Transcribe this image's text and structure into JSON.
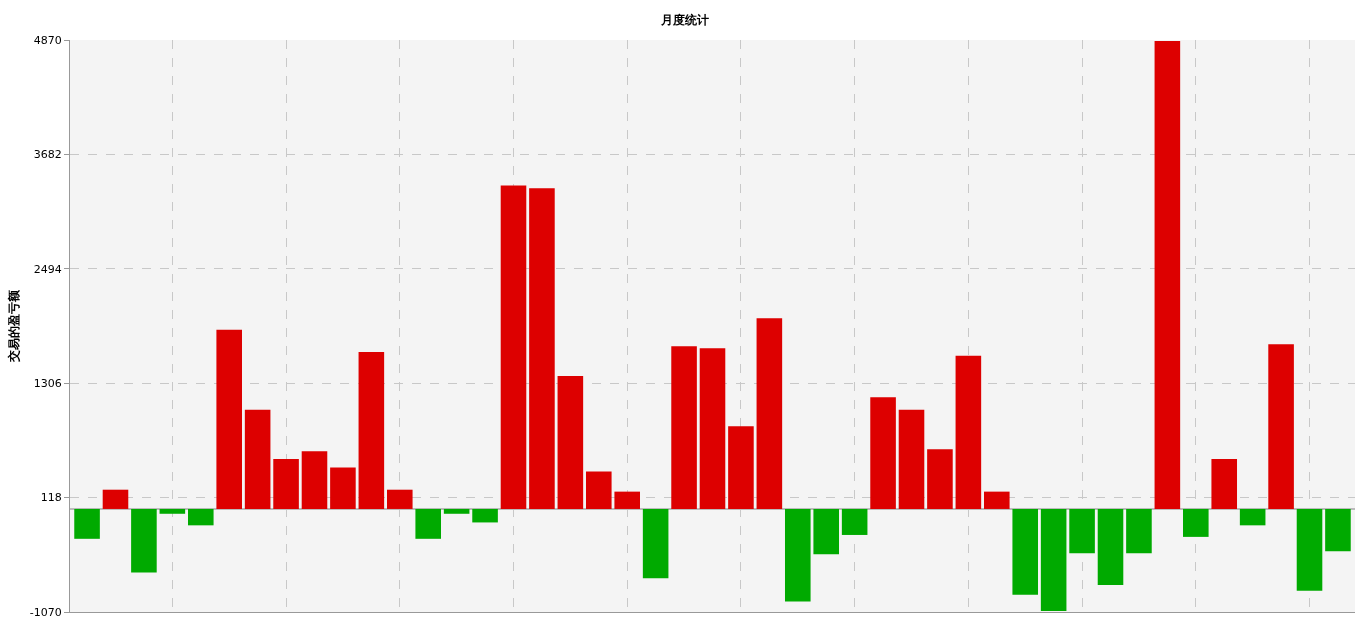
{
  "chart_data": {
    "type": "bar",
    "title": "月度统计",
    "ylabel": "交易的盈亏额",
    "categories": [
      null,
      null,
      null,
      null,
      null,
      null,
      null,
      null,
      null,
      null,
      null,
      null,
      null,
      null,
      null,
      null,
      null,
      null,
      null,
      null,
      null,
      null,
      null,
      null,
      null,
      null,
      null,
      null,
      null,
      null,
      null,
      null,
      null,
      null,
      null,
      null,
      null,
      null,
      null,
      null,
      null,
      null,
      null,
      null,
      null
    ],
    "values": [
      -310,
      200,
      -660,
      -50,
      -170,
      1860,
      1030,
      520,
      600,
      430,
      1630,
      200,
      -310,
      -50,
      -140,
      3360,
      3330,
      1380,
      390,
      180,
      -720,
      1690,
      1670,
      860,
      1980,
      -960,
      -470,
      -270,
      1160,
      1030,
      620,
      1590,
      180,
      -890,
      -1060,
      -460,
      -790,
      -460,
      4860,
      -290,
      520,
      -170,
      1710,
      -850,
      -440
    ],
    "colors": [
      "#00aa00",
      "#dd0000",
      "#00aa00",
      "#00aa00",
      "#00aa00",
      "#dd0000",
      "#dd0000",
      "#dd0000",
      "#dd0000",
      "#dd0000",
      "#dd0000",
      "#dd0000",
      "#00aa00",
      "#00aa00",
      "#00aa00",
      "#dd0000",
      "#dd0000",
      "#dd0000",
      "#dd0000",
      "#dd0000",
      "#00aa00",
      "#dd0000",
      "#dd0000",
      "#dd0000",
      "#dd0000",
      "#00aa00",
      "#00aa00",
      "#00aa00",
      "#dd0000",
      "#dd0000",
      "#dd0000",
      "#dd0000",
      "#dd0000",
      "#00aa00",
      "#00aa00",
      "#00aa00",
      "#00aa00",
      "#00aa00",
      "#dd0000",
      "#00aa00",
      "#dd0000",
      "#00aa00",
      "#dd0000",
      "#00aa00",
      "#00aa00"
    ],
    "ylim": [
      -1070,
      4870
    ],
    "yticks": [
      -1070,
      118,
      1306,
      2494,
      3682,
      4870
    ],
    "grid": true,
    "tick_labels": "y"
  }
}
